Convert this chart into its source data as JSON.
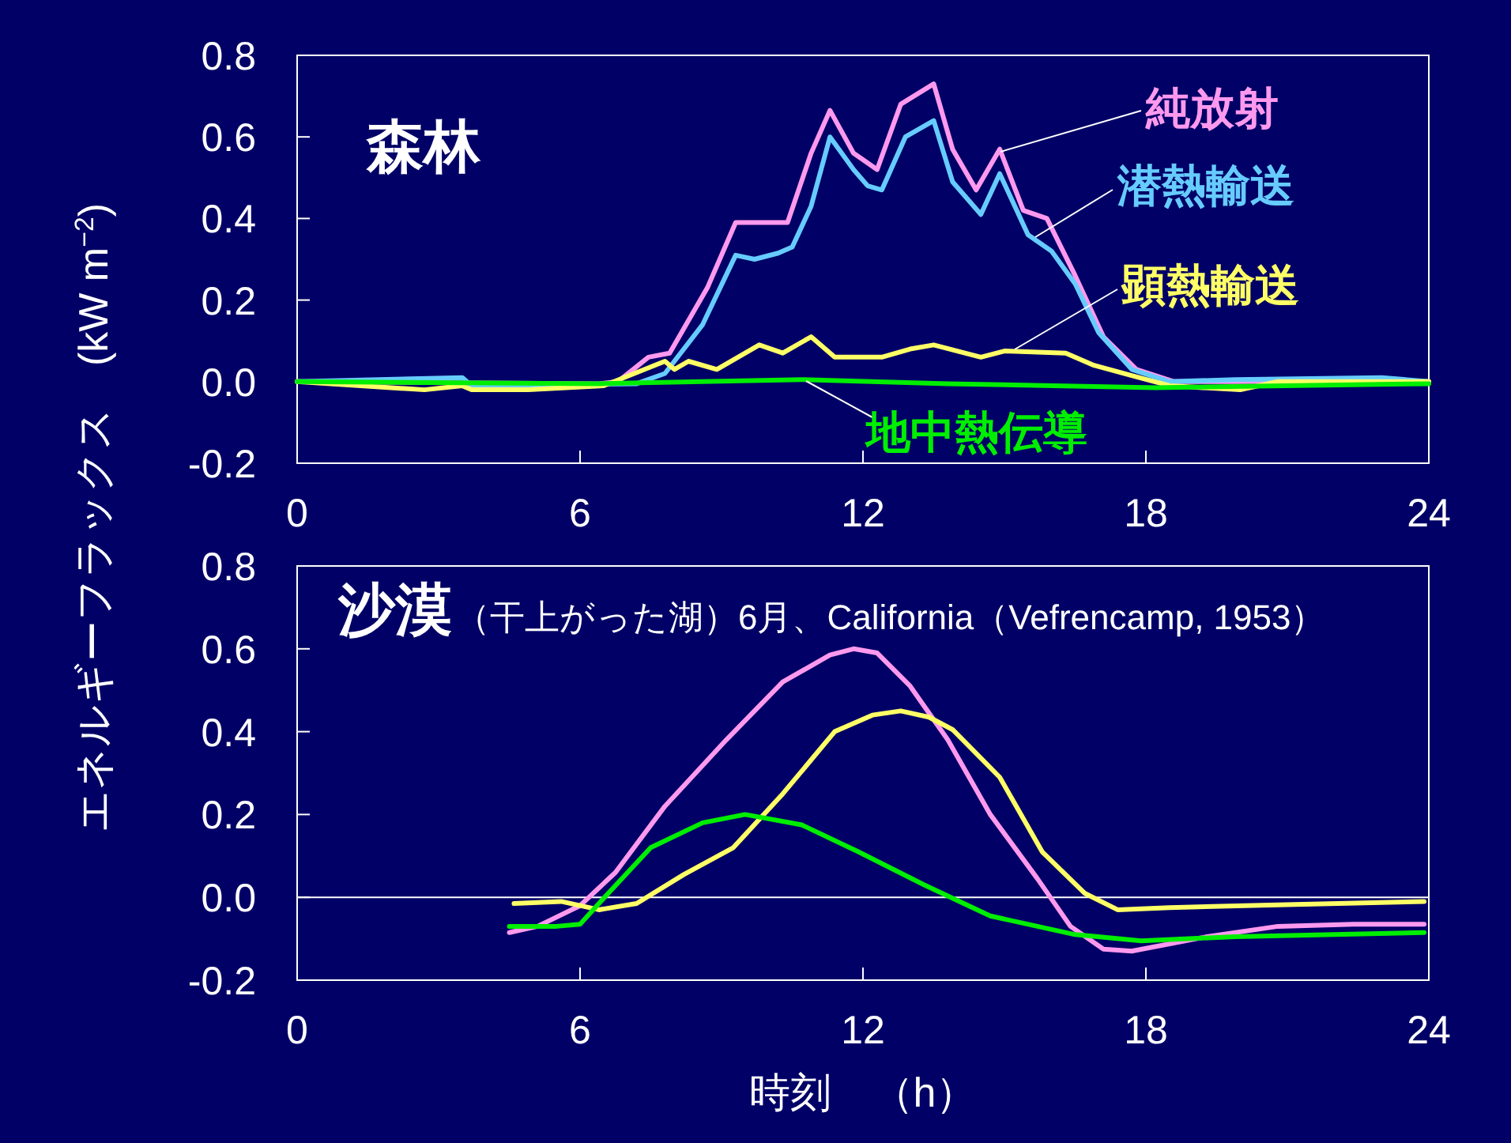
{
  "chart_data": [
    {
      "type": "line",
      "title": "森林",
      "ylabel": "エネルギーフラックス　(kW m$^{−2}$)",
      "xlim": [
        0,
        24
      ],
      "xticks": [
        0,
        6,
        12,
        18,
        24
      ],
      "ylim": [
        -0.2,
        0.8
      ],
      "yticks": [
        {
          "value": -0.2,
          "label": "-0.2"
        },
        {
          "value": 0,
          "label": "0.0"
        },
        {
          "value": 0.2,
          "label": "0.2"
        },
        {
          "value": 0.4,
          "label": "0.4"
        },
        {
          "value": 0.6,
          "label": "0.6"
        },
        {
          "value": 0.8,
          "label": "0.8"
        }
      ],
      "grid": false,
      "series": [
        {
          "name": "純放射",
          "color": "#ff99ee",
          "x": [
            0,
            6.4,
            6.8,
            7.45,
            7.9,
            8.7,
            9.3,
            10.4,
            10.9,
            11.3,
            11.8,
            12.3,
            12.8,
            13.5,
            13.9,
            14.4,
            14.9,
            15.4,
            15.9,
            16.5,
            17.1,
            17.8,
            18.6,
            24
          ],
          "values": [
            0,
            -0.005,
            0,
            0.06,
            0.07,
            0.23,
            0.39,
            0.39,
            0.56,
            0.665,
            0.56,
            0.52,
            0.68,
            0.73,
            0.57,
            0.47,
            0.57,
            0.42,
            0.4,
            0.26,
            0.11,
            0.03,
            0,
            0
          ]
        },
        {
          "name": "潜熱輸送",
          "color": "#66ccff",
          "x": [
            0,
            3.5,
            3.7,
            7.2,
            7.8,
            8.6,
            9.3,
            9.7,
            10.2,
            10.5,
            10.9,
            11.3,
            11.8,
            12.1,
            12.4,
            12.9,
            13.5,
            13.9,
            14.5,
            14.9,
            15.5,
            16.0,
            16.5,
            17.0,
            17.7,
            18.5,
            19.9,
            23,
            24
          ],
          "values": [
            0,
            0.01,
            -0.01,
            -0.005,
            0.02,
            0.14,
            0.31,
            0.3,
            0.315,
            0.33,
            0.43,
            0.6,
            0.52,
            0.48,
            0.47,
            0.6,
            0.64,
            0.49,
            0.41,
            0.51,
            0.36,
            0.32,
            0.24,
            0.12,
            0.03,
            0,
            0.005,
            0.01,
            0
          ]
        },
        {
          "name": "顕熱輸送",
          "color": "#ffff66",
          "x": [
            0,
            2.7,
            3.5,
            3.7,
            4.9,
            6.5,
            7.8,
            8.0,
            8.3,
            8.9,
            9.8,
            10.3,
            10.9,
            11.4,
            12.4,
            13.0,
            13.5,
            14.5,
            15.0,
            16.3,
            16.9,
            17.7,
            18.5,
            20.0,
            20.8,
            24
          ],
          "values": [
            0,
            -0.02,
            -0.01,
            -0.02,
            -0.02,
            -0.01,
            0.05,
            0.03,
            0.05,
            0.03,
            0.09,
            0.07,
            0.11,
            0.06,
            0.06,
            0.08,
            0.09,
            0.06,
            0.075,
            0.07,
            0.04,
            0.015,
            -0.01,
            -0.02,
            0,
            0
          ]
        },
        {
          "name": "地中熱伝導",
          "color": "#00ee00",
          "x": [
            0,
            6.4,
            10.7,
            13.8,
            18.2,
            24
          ],
          "values": [
            0,
            -0.005,
            0.005,
            -0.005,
            -0.015,
            -0.005
          ]
        }
      ]
    },
    {
      "type": "line",
      "title": "沙漠",
      "subtitle": "（干上がった湖）6月、California（Vefrencamp, 1953）",
      "xlabel": "時刻　（h）",
      "xlim": [
        0,
        24
      ],
      "xticks": [
        0,
        6,
        12,
        18,
        24
      ],
      "ylim": [
        -0.2,
        0.8
      ],
      "yticks": [
        {
          "value": -0.2,
          "label": "-0.2"
        },
        {
          "value": 0,
          "label": "0.0"
        },
        {
          "value": 0.2,
          "label": "0.2"
        },
        {
          "value": 0.4,
          "label": "0.4"
        },
        {
          "value": 0.6,
          "label": "0.6"
        },
        {
          "value": 0.8,
          "label": "0.8"
        }
      ],
      "grid": false,
      "ref_lines": [
        {
          "axis": "y",
          "value": 0,
          "color": "#ffffff"
        }
      ],
      "series": [
        {
          "color": "#ff99ee",
          "x": [
            4.5,
            5.1,
            6.0,
            6.75,
            7.8,
            9.1,
            10.3,
            11.3,
            11.8,
            12.3,
            13.0,
            13.8,
            14.7,
            15.7,
            16.4,
            17.1,
            17.7,
            19.3,
            20.8,
            22.4,
            23.9
          ],
          "values": [
            -0.085,
            -0.07,
            -0.02,
            0.06,
            0.22,
            0.38,
            0.52,
            0.585,
            0.6,
            0.59,
            0.51,
            0.38,
            0.2,
            0.045,
            -0.07,
            -0.125,
            -0.13,
            -0.095,
            -0.07,
            -0.065,
            -0.065
          ]
        },
        {
          "color": "#ffff66",
          "x": [
            4.6,
            5.6,
            6.4,
            7.2,
            8.2,
            9.25,
            10.3,
            11.4,
            12.2,
            12.8,
            13.4,
            13.9,
            14.9,
            15.8,
            16.7,
            17.4,
            18.5,
            20.8,
            23.9
          ],
          "values": [
            -0.015,
            -0.01,
            -0.03,
            -0.015,
            0.055,
            0.12,
            0.25,
            0.4,
            0.44,
            0.45,
            0.435,
            0.405,
            0.29,
            0.11,
            0.01,
            -0.03,
            -0.025,
            -0.018,
            -0.01
          ]
        },
        {
          "color": "#00ee00",
          "x": [
            4.5,
            5.5,
            6.0,
            6.6,
            7.5,
            8.6,
            9.5,
            10.7,
            11.9,
            13.3,
            14.7,
            16.5,
            17.9,
            19.9,
            23.9
          ],
          "values": [
            -0.07,
            -0.07,
            -0.065,
            0.01,
            0.12,
            0.18,
            0.2,
            0.175,
            0.11,
            0.03,
            -0.045,
            -0.09,
            -0.105,
            -0.095,
            -0.085
          ]
        }
      ]
    }
  ]
}
